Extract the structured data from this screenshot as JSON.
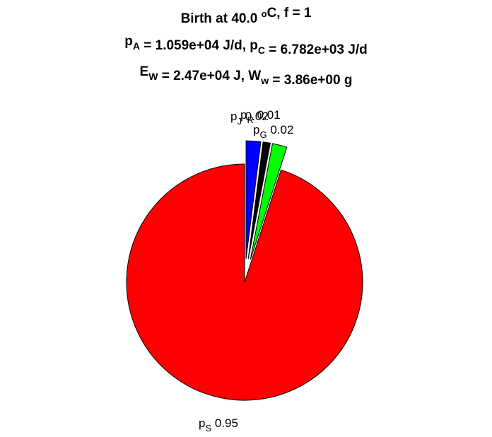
{
  "chart_data": {
    "type": "pie",
    "title_lines": [
      [
        {
          "t": "Birth at 40.0 "
        },
        {
          "t": "o",
          "s": "sup"
        },
        {
          "t": "C, f = 1"
        }
      ],
      [
        {
          "t": "p"
        },
        {
          "t": "A",
          "s": "sub"
        },
        {
          "t": " = 1.059e+04 J/d, p"
        },
        {
          "t": "C",
          "s": "sub"
        },
        {
          "t": " = 6.782e+03 J/d"
        }
      ],
      [
        {
          "t": "E"
        },
        {
          "t": "W",
          "s": "sub"
        },
        {
          "t": " = 2.47e+04 J, W"
        },
        {
          "t": "w",
          "s": "sub"
        },
        {
          "t": " = 3.86e+00 g"
        }
      ]
    ],
    "slices": [
      {
        "symbol": "p",
        "sub": "S",
        "value": 0.95,
        "value_label": "0.95",
        "color": "#ff0000"
      },
      {
        "symbol": "p",
        "sub": "J",
        "value": 0.02,
        "value_label": "0.02",
        "color": "#0000ff"
      },
      {
        "symbol": "p",
        "sub": "R",
        "value": 0.01,
        "value_label": "0.01",
        "color": "#000000"
      },
      {
        "symbol": "p",
        "sub": "G",
        "value": 0.02,
        "value_label": "0.02",
        "color": "#00ff00"
      }
    ],
    "legend": "none",
    "exploded": [
      "J",
      "R",
      "G"
    ]
  }
}
